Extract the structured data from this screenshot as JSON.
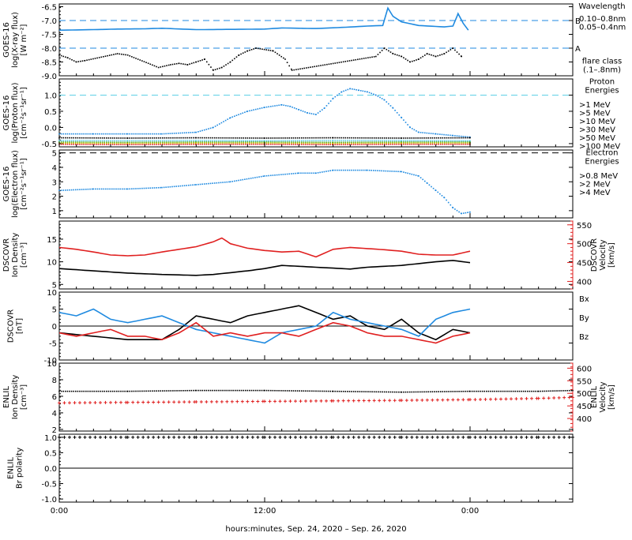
{
  "colors": {
    "blue": "#1f8ae0",
    "cyan": "#5fd0e6",
    "green": "#2ea02e",
    "yellow": "#c9c400",
    "orange": "#ff8a00",
    "red": "#e02020",
    "magenta": "#e000e0",
    "black": "#000000"
  },
  "xaxis": {
    "title": "hours:minutes, Sep. 24, 2020 – Sep. 26, 2020",
    "range_hours": [
      0,
      30
    ],
    "ticks": [
      {
        "hour": 0,
        "label": "0:00"
      },
      {
        "hour": 12,
        "label": "12:00"
      },
      {
        "hour": 24,
        "label": "0:00"
      }
    ]
  },
  "chart_data": [
    {
      "id": "xray",
      "type": "line",
      "ylabel": "GOES-16\nlog(X-ray flux)\n[W m⁻²]",
      "ylim": [
        -9.0,
        -6.4
      ],
      "yticks": [
        -6.5,
        -7.0,
        -7.5,
        -8.0,
        -8.5,
        -9.0
      ],
      "tick_labels": [
        "-6.5",
        "-7.0",
        "-7.5",
        "-8.0",
        "-8.5",
        "-9.0"
      ],
      "legend_title": "Wavelength",
      "legend": [
        {
          "label": "0.10–0.8nm",
          "color": "#1f8ae0"
        },
        {
          "label": "0.05–0.4nm",
          "color": "#000000"
        }
      ],
      "flare_class_label": "flare class\n(.1–.8nm)",
      "flare_lines": [
        {
          "label": "B",
          "value": -7.0
        },
        {
          "label": "A",
          "value": -8.0
        }
      ],
      "series": [
        {
          "name": "0.10–0.8nm",
          "color": "#1f8ae0",
          "style": "line",
          "x": [
            0.0,
            1.0,
            2.0,
            3.4,
            5.0,
            6.0,
            8.0,
            10.0,
            12.0,
            13.0,
            14.0,
            15.0,
            16.5,
            18.0,
            18.9,
            19.2,
            19.5,
            20.0,
            21.0,
            22.5,
            23.0,
            23.3,
            23.6,
            23.9
          ],
          "y": [
            -7.35,
            -7.34,
            -7.33,
            -7.31,
            -7.3,
            -7.28,
            -7.33,
            -7.32,
            -7.31,
            -7.27,
            -7.28,
            -7.29,
            -7.25,
            -7.2,
            -7.18,
            -6.55,
            -6.85,
            -7.05,
            -7.18,
            -7.23,
            -7.2,
            -6.75,
            -7.1,
            -7.35
          ]
        },
        {
          "name": "0.05–0.4nm",
          "color": "#000000",
          "style": "dots",
          "x": [
            0.0,
            0.5,
            1.0,
            1.5,
            3.4,
            4.0,
            5.8,
            6.5,
            7.0,
            7.5,
            8.0,
            8.5,
            9.0,
            9.5,
            10.0,
            10.5,
            11.0,
            11.5,
            12.5,
            13.2,
            13.6,
            18.5,
            19.0,
            19.5,
            20.0,
            20.5,
            21.0,
            21.5,
            22.0,
            22.5,
            23.0,
            23.5
          ],
          "y": [
            -8.25,
            -8.35,
            -8.5,
            -8.45,
            -8.2,
            -8.25,
            -8.7,
            -8.6,
            -8.55,
            -8.6,
            -8.5,
            -8.4,
            -8.8,
            -8.7,
            -8.5,
            -8.25,
            -8.1,
            -8.0,
            -8.1,
            -8.4,
            -8.8,
            -8.3,
            -8.0,
            -8.2,
            -8.3,
            -8.5,
            -8.4,
            -8.2,
            -8.3,
            -8.2,
            -8.0,
            -8.3
          ]
        }
      ]
    },
    {
      "id": "proton",
      "type": "line",
      "ylabel": "GOES-16\nlog(Proton flux)\n[cm⁻²s⁻¹sr⁻¹]",
      "ylim": [
        -0.6,
        1.5
      ],
      "yticks": [
        1.0,
        0.5,
        0.0,
        -0.5
      ],
      "tick_labels": [
        "1.0",
        "0.5",
        "0.0",
        "-0.5"
      ],
      "legend_title": "Proton\nEnergies",
      "legend": [
        {
          "label": ">1 MeV",
          "color": "#1f8ae0"
        },
        {
          "label": ">5 MeV",
          "color": "#000000"
        },
        {
          "label": ">10 MeV",
          "color": "#5fd0e6"
        },
        {
          "label": ">30 MeV",
          "color": "#2ea02e"
        },
        {
          "label": ">50 MeV",
          "color": "#c9c400"
        },
        {
          "label": ">100 MeV",
          "color": "#e02020"
        }
      ],
      "threshold": 1.0,
      "series": [
        {
          "name": ">1 MeV",
          "color": "#1f8ae0",
          "style": "dots",
          "x": [
            0,
            2,
            4,
            6,
            8,
            9,
            10,
            11,
            12,
            13,
            13.5,
            14,
            14.5,
            15,
            15.5,
            16,
            16.5,
            17,
            17.5,
            18,
            18.5,
            19,
            19.5,
            20,
            20.5,
            21,
            22,
            23,
            24
          ],
          "y": [
            -0.2,
            -0.2,
            -0.2,
            -0.2,
            -0.15,
            0.0,
            0.3,
            0.5,
            0.62,
            0.7,
            0.65,
            0.55,
            0.45,
            0.4,
            0.6,
            0.9,
            1.1,
            1.2,
            1.15,
            1.1,
            1.0,
            0.85,
            0.6,
            0.3,
            0.0,
            -0.15,
            -0.2,
            -0.25,
            -0.3
          ]
        },
        {
          "name": ">5 MeV",
          "color": "#000000",
          "style": "dots",
          "x": [
            0,
            4,
            8,
            12,
            16,
            20,
            24
          ],
          "y": [
            -0.32,
            -0.33,
            -0.32,
            -0.33,
            -0.32,
            -0.33,
            -0.32
          ]
        },
        {
          "name": ">10 MeV",
          "color": "#5fd0e6",
          "style": "dots",
          "x": [
            0,
            4,
            8,
            12,
            16,
            20,
            24
          ],
          "y": [
            -0.4,
            -0.41,
            -0.4,
            -0.41,
            -0.4,
            -0.4,
            -0.41
          ]
        },
        {
          "name": ">30 MeV",
          "color": "#2ea02e",
          "style": "dots",
          "x": [
            0,
            4,
            8,
            12,
            16,
            20,
            24
          ],
          "y": [
            -0.45,
            -0.46,
            -0.45,
            -0.45,
            -0.46,
            -0.45,
            -0.45
          ]
        },
        {
          "name": ">50 MeV",
          "color": "#c9c400",
          "style": "dots",
          "x": [
            0,
            4,
            8,
            12,
            16,
            20,
            24
          ],
          "y": [
            -0.48,
            -0.49,
            -0.48,
            -0.48,
            -0.49,
            -0.48,
            -0.48
          ]
        },
        {
          "name": ">100 MeV",
          "color": "#e02020",
          "style": "dots",
          "x": [
            0,
            4,
            8,
            12,
            16,
            20,
            24
          ],
          "y": [
            -0.52,
            -0.53,
            -0.52,
            -0.52,
            -0.53,
            -0.52,
            -0.52
          ]
        }
      ]
    },
    {
      "id": "electron",
      "type": "line",
      "ylabel": "GOES-16\nlog(Electron flux)\n[cm⁻²s⁻¹sr⁻¹]",
      "ylim": [
        0.5,
        5.2
      ],
      "yticks": [
        5,
        4,
        3,
        2,
        1
      ],
      "tick_labels": [
        "5",
        "4",
        "3",
        "2",
        "1"
      ],
      "legend_title": "Electron\nEnergies",
      "legend": [
        {
          "label": ">0.8 MeV",
          "color": "#000000"
        },
        {
          "label": ">2 MeV",
          "color": "#1f8ae0"
        },
        {
          "label": ">4 MeV",
          "color": "#e000e0"
        }
      ],
      "threshold": 5.0,
      "series": [
        {
          "name": ">2 MeV",
          "color": "#1f8ae0",
          "style": "dots",
          "x": [
            0,
            2,
            4,
            6,
            8,
            10,
            12,
            14,
            15,
            16,
            18,
            20,
            21,
            21.5,
            22,
            22.5,
            23,
            23.5,
            24
          ],
          "y": [
            2.4,
            2.5,
            2.5,
            2.6,
            2.8,
            3.0,
            3.4,
            3.6,
            3.6,
            3.8,
            3.8,
            3.7,
            3.4,
            2.9,
            2.4,
            1.9,
            1.2,
            0.8,
            0.9
          ]
        }
      ]
    },
    {
      "id": "dscovr_density",
      "type": "line",
      "ylabel": "DSCOVR\nIon Density\n[cm⁻³]",
      "ylim": [
        4,
        19
      ],
      "yticks": [
        15,
        10,
        5
      ],
      "tick_labels": [
        "15",
        "10",
        "5"
      ],
      "y2label": "DSCOVR\nVelocity\n[km/s]",
      "y2lim": [
        380,
        560
      ],
      "y2ticks": [
        550,
        500,
        450,
        400
      ],
      "y2tick_labels": [
        "550",
        "500",
        "450",
        "400"
      ],
      "series": [
        {
          "name": "Ion Density",
          "color": "#000000",
          "axis": "left",
          "style": "line",
          "x": [
            0,
            2,
            4,
            6,
            8,
            9,
            10,
            11,
            12,
            13,
            14,
            15,
            16,
            17,
            18,
            19,
            20,
            21,
            22,
            23,
            24
          ],
          "y": [
            8.5,
            8.0,
            7.5,
            7.2,
            7.0,
            7.2,
            7.6,
            8.0,
            8.5,
            9.2,
            9.0,
            8.8,
            8.6,
            8.4,
            8.8,
            9.0,
            9.2,
            9.6,
            10.0,
            10.3,
            9.8
          ]
        },
        {
          "name": "Velocity",
          "color": "#e02020",
          "axis": "right",
          "style": "line",
          "x": [
            0,
            1,
            2,
            3,
            4,
            5,
            6,
            7,
            8,
            9,
            9.5,
            10,
            11,
            12,
            13,
            14,
            15,
            16,
            17,
            18,
            19,
            20,
            21,
            22,
            23,
            24
          ],
          "y": [
            490,
            485,
            478,
            470,
            468,
            470,
            478,
            485,
            492,
            505,
            515,
            500,
            488,
            482,
            478,
            480,
            465,
            485,
            490,
            487,
            484,
            480,
            472,
            470,
            470,
            480
          ]
        }
      ]
    },
    {
      "id": "dscovr_bfield",
      "type": "line",
      "ylabel": "DSCOVR\n[nT]",
      "ylim": [
        -10,
        10
      ],
      "yticks": [
        10,
        5,
        0,
        -5,
        -10
      ],
      "tick_labels": [
        "10",
        "5",
        "0",
        "-5",
        "-10"
      ],
      "legend": [
        {
          "label": "Bx",
          "color": "#000000"
        },
        {
          "label": "By",
          "color": "#1f8ae0"
        },
        {
          "label": "Bz",
          "color": "#e02020"
        }
      ],
      "series": [
        {
          "name": "Bx",
          "color": "#000000",
          "style": "line",
          "x": [
            0,
            2,
            4,
            6,
            7,
            8,
            9,
            10,
            11,
            12,
            13,
            14,
            15,
            16,
            17,
            18,
            19,
            20,
            21,
            22,
            23,
            24
          ],
          "y": [
            -2,
            -3,
            -4,
            -4,
            -1,
            3,
            2,
            1,
            3,
            4,
            5,
            6,
            4,
            2,
            3,
            0,
            -1,
            2,
            -2,
            -4,
            -1,
            -2
          ]
        },
        {
          "name": "By",
          "color": "#1f8ae0",
          "style": "line",
          "x": [
            0,
            1,
            2,
            3,
            4,
            5,
            6,
            7,
            8,
            9,
            10,
            11,
            12,
            13,
            14,
            15,
            16,
            17,
            18,
            19,
            20,
            21,
            22,
            23,
            24
          ],
          "y": [
            4,
            3,
            5,
            2,
            1,
            2,
            3,
            1,
            -1,
            -2,
            -3,
            -4,
            -5,
            -2,
            -1,
            0,
            4,
            2,
            1,
            0,
            -1,
            -3,
            2,
            4,
            5
          ]
        },
        {
          "name": "Bz",
          "color": "#e02020",
          "style": "line",
          "x": [
            0,
            1,
            2,
            3,
            4,
            5,
            6,
            7,
            8,
            9,
            10,
            11,
            12,
            13,
            14,
            15,
            16,
            17,
            18,
            19,
            20,
            21,
            22,
            23,
            24
          ],
          "y": [
            -2,
            -3,
            -2,
            -1,
            -3,
            -3,
            -4,
            -2,
            1,
            -3,
            -2,
            -3,
            -2,
            -2,
            -3,
            -1,
            1,
            0,
            -2,
            -3,
            -3,
            -4,
            -5,
            -3,
            -2
          ]
        }
      ]
    },
    {
      "id": "enlil_density",
      "type": "line",
      "ylabel": "ENLIL\nIon Density\n[cm⁻³]",
      "ylim": [
        1.8,
        10.0
      ],
      "yticks": [
        10,
        8,
        6,
        4,
        2
      ],
      "tick_labels": [
        "10",
        "8",
        "6",
        "4",
        "2"
      ],
      "y2label": "ENLIL\nVelocity\n[km/s]",
      "y2lim": [
        350,
        620
      ],
      "y2ticks": [
        600,
        550,
        500,
        450,
        400
      ],
      "y2tick_labels": [
        "600",
        "550",
        "500",
        "450",
        "400"
      ],
      "series": [
        {
          "name": "Ion Density",
          "color": "#000000",
          "axis": "left",
          "style": "dots",
          "x": [
            0,
            4,
            8,
            12,
            16,
            20,
            24,
            28,
            30
          ],
          "y": [
            6.6,
            6.6,
            6.7,
            6.7,
            6.6,
            6.5,
            6.6,
            6.6,
            6.7
          ]
        },
        {
          "name": "Velocity",
          "color": "#e02020",
          "axis": "right",
          "style": "plus",
          "x": [
            0,
            4,
            8,
            12,
            16,
            20,
            24,
            28,
            30
          ],
          "y": [
            462,
            464,
            466,
            468,
            470,
            472,
            475,
            480,
            484
          ]
        }
      ]
    },
    {
      "id": "enlil_polarity",
      "type": "line",
      "ylabel": "ENLIL\nBr polarity",
      "ylim": [
        -1.1,
        1.1
      ],
      "yticks": [
        1.0,
        0.5,
        0.0,
        -0.5,
        -1.0
      ],
      "tick_labels": [
        "1.0",
        "0.5",
        "0.0",
        "-0.5",
        "-1.0"
      ],
      "series": [
        {
          "name": "Br polarity",
          "color": "#000000",
          "style": "plus",
          "x": [
            0,
            4,
            8,
            12,
            16,
            20,
            24,
            28,
            30
          ],
          "y": [
            1,
            1,
            1,
            1,
            1,
            1,
            1,
            1,
            1
          ]
        }
      ]
    }
  ]
}
